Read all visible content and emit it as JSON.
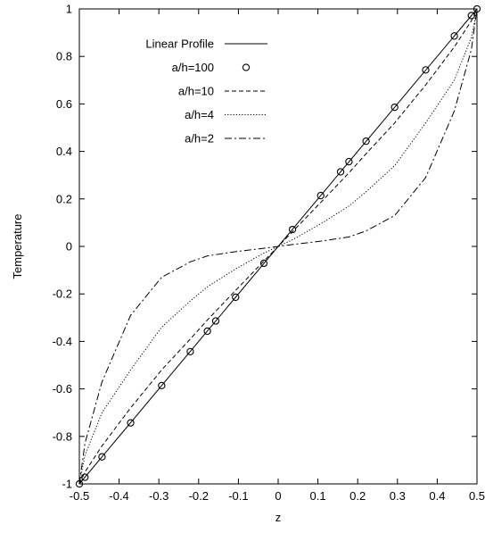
{
  "chart_data": {
    "type": "line",
    "title": "",
    "xlabel": "z",
    "ylabel": "Temperature",
    "xlim": [
      -0.5,
      0.5
    ],
    "ylim": [
      -1,
      1
    ],
    "grid": false,
    "legend_position": "top-left",
    "x_ticks": [
      -0.5,
      -0.4,
      -0.3,
      -0.2,
      -0.1,
      0,
      0.1,
      0.2,
      0.3,
      0.4,
      0.5
    ],
    "x_tick_labels": [
      "-0.5",
      "-0.4",
      "-0.3",
      "-0.2",
      "-0.1",
      "0",
      "0.1",
      "0.2",
      "0.3",
      "0.4",
      "0.5"
    ],
    "y_ticks": [
      -1,
      -0.8,
      -0.6,
      -0.4,
      -0.2,
      0,
      0.2,
      0.4,
      0.6,
      0.8,
      1
    ],
    "y_tick_labels": [
      "-1",
      "-0.8",
      "-0.6",
      "-0.4",
      "-0.2",
      "0",
      "0.2",
      "0.4",
      "0.6",
      "0.8",
      "1"
    ],
    "series": [
      {
        "name": "Linear Profile",
        "style": "solid",
        "color": "#000000",
        "x": [
          -0.5,
          0.5
        ],
        "y": [
          -1,
          1
        ]
      },
      {
        "name": "a/h=100",
        "style": "circles",
        "color": "#000000",
        "x": [
          -0.5,
          -0.486,
          -0.443,
          -0.371,
          -0.293,
          -0.221,
          -0.178,
          -0.157,
          -0.107,
          -0.036,
          0.036,
          0.107,
          0.157,
          0.178,
          0.221,
          0.293,
          0.371,
          0.443,
          0.486,
          0.5
        ],
        "y": [
          -1,
          -0.972,
          -0.886,
          -0.743,
          -0.586,
          -0.443,
          -0.357,
          -0.314,
          -0.214,
          -0.071,
          0.071,
          0.214,
          0.314,
          0.357,
          0.443,
          0.586,
          0.743,
          0.886,
          0.972,
          1
        ]
      },
      {
        "name": "a/h=10",
        "style": "dashed",
        "color": "#000000",
        "x": [
          -0.5,
          -0.486,
          -0.443,
          -0.371,
          -0.293,
          -0.221,
          -0.178,
          -0.107,
          -0.036,
          0,
          0.036,
          0.107,
          0.178,
          0.221,
          0.293,
          0.371,
          0.443,
          0.486,
          0.5
        ],
        "y": [
          -1,
          -0.95,
          -0.84,
          -0.68,
          -0.52,
          -0.39,
          -0.31,
          -0.185,
          -0.062,
          0,
          0.062,
          0.185,
          0.31,
          0.39,
          0.52,
          0.68,
          0.84,
          0.95,
          1
        ]
      },
      {
        "name": "a/h=4",
        "style": "dotted",
        "color": "#000000",
        "x": [
          -0.5,
          -0.486,
          -0.443,
          -0.371,
          -0.293,
          -0.221,
          -0.178,
          -0.107,
          -0.036,
          0,
          0.036,
          0.107,
          0.178,
          0.221,
          0.293,
          0.371,
          0.443,
          0.486,
          0.5
        ],
        "y": [
          -1,
          -0.88,
          -0.7,
          -0.52,
          -0.34,
          -0.23,
          -0.17,
          -0.095,
          -0.028,
          0,
          0.028,
          0.095,
          0.17,
          0.23,
          0.34,
          0.52,
          0.7,
          0.88,
          1
        ]
      },
      {
        "name": "a/h=2",
        "style": "dashdot",
        "color": "#000000",
        "x": [
          -0.5,
          -0.486,
          -0.443,
          -0.371,
          -0.293,
          -0.221,
          -0.178,
          -0.107,
          -0.036,
          0,
          0.036,
          0.107,
          0.178,
          0.221,
          0.293,
          0.371,
          0.443,
          0.486,
          0.5
        ],
        "y": [
          -1,
          -0.83,
          -0.57,
          -0.29,
          -0.13,
          -0.065,
          -0.04,
          -0.022,
          -0.008,
          0,
          0.008,
          0.022,
          0.04,
          0.065,
          0.13,
          0.29,
          0.57,
          0.83,
          1
        ]
      }
    ]
  }
}
